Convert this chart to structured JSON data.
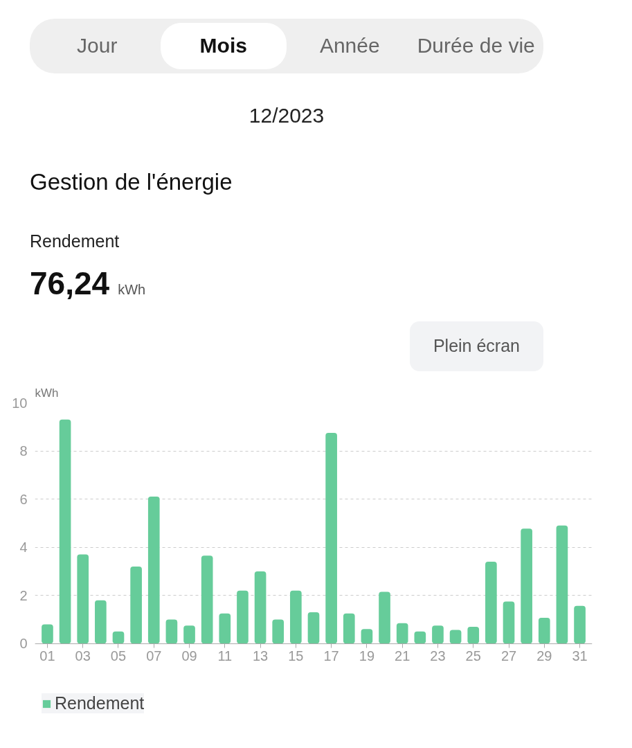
{
  "chart_data": {
    "type": "bar",
    "title": "Gestion de l'énergie",
    "ylabel": "kWh",
    "annotations": [
      "Jour",
      "Mois",
      "Année",
      "Durée de vie",
      "12/2023",
      "Rendement",
      "76,24",
      "kWh",
      "Plein écran"
    ],
    "categories": [
      "01",
      null,
      "03",
      null,
      "05",
      null,
      "07",
      null,
      "09",
      null,
      "11",
      null,
      "13",
      null,
      "15",
      null,
      "17",
      null,
      "19",
      null,
      "21",
      null,
      "23",
      null,
      "25",
      null,
      "27",
      null,
      "29",
      null,
      "31"
    ],
    "series": [
      {
        "name": "Rendement",
        "color": "#66cc9a",
        "values": [
          0.8,
          9.3,
          3.7,
          1.8,
          0.5,
          3.2,
          6.1,
          1.0,
          0.75,
          3.65,
          1.25,
          2.2,
          3.0,
          1.0,
          2.2,
          1.3,
          8.75,
          1.25,
          0.6,
          2.15,
          0.85,
          0.5,
          0.75,
          0.57,
          0.7,
          3.4,
          1.75,
          4.77,
          1.07,
          4.9,
          1.57
        ]
      }
    ],
    "ylim": [
      0,
      10
    ],
    "yticks": [
      0,
      2,
      4,
      6,
      8,
      10
    ],
    "grid": "y",
    "legend": "bottom left"
  }
}
